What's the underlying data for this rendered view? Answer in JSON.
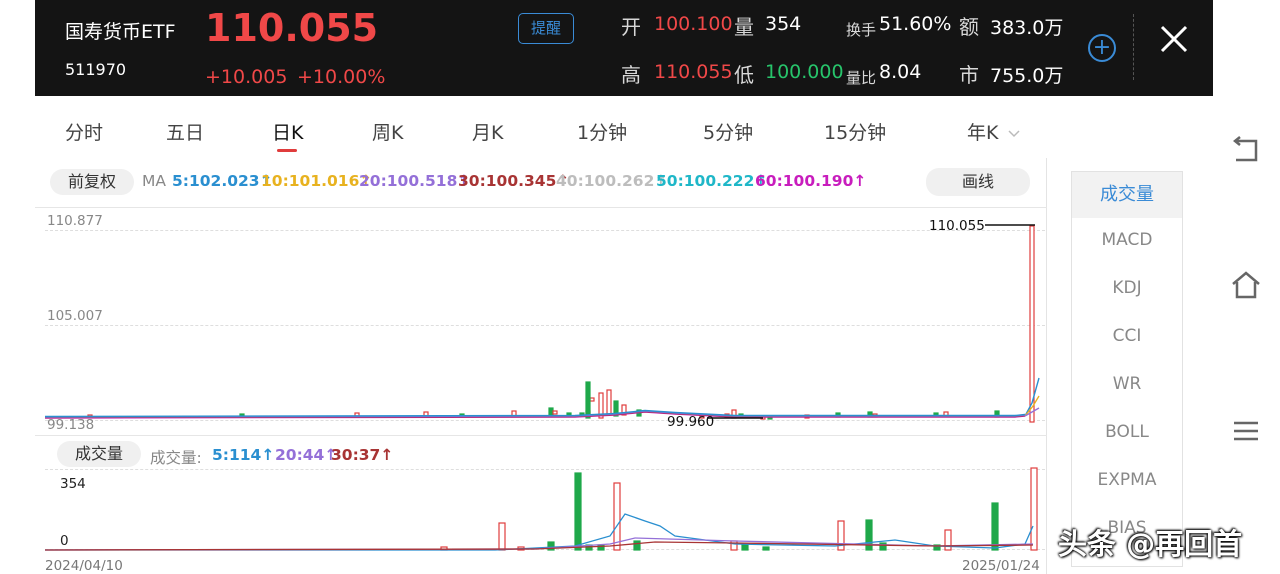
{
  "header": {
    "name": "国寿货币ETF",
    "code": "511970",
    "price": "110.055",
    "change": "+10.005",
    "change_pct": "+10.00%",
    "remind_label": "提醒",
    "stats": {
      "open_label": "开",
      "open": "100.100",
      "vol_label": "量",
      "vol": "354",
      "turnover_label": "换手",
      "turnover": "51.60%",
      "amount_label": "额",
      "amount": "383.0万",
      "high_label": "高",
      "high": "110.055",
      "low_label": "低",
      "low": "100.000",
      "vratio_label": "量比",
      "vratio": "8.04",
      "mcap_label": "市",
      "mcap": "755.0万"
    }
  },
  "tabs": [
    "分时",
    "五日",
    "日K",
    "周K",
    "月K",
    "1分钟",
    "5分钟",
    "15分钟",
    "年K"
  ],
  "active_tab": "日K",
  "tab_dropdown_icon": "chevron-down-icon",
  "chart": {
    "adjust_label": "前复权",
    "draw_label": "画线",
    "ma_prefix": "MA",
    "ma": [
      {
        "text": "5:102.023↑",
        "color": "#2a8fd0"
      },
      {
        "text": "10:101.016↑",
        "color": "#e8b21f"
      },
      {
        "text": "20:100.518↑",
        "color": "#9470d8"
      },
      {
        "text": "30:100.345↑",
        "color": "#a83434"
      },
      {
        "text": "40:100.262↑",
        "color": "#bdbdbd"
      },
      {
        "text": "50:100.222↑",
        "color": "#1fb7c8"
      },
      {
        "text": "60:100.190↑",
        "color": "#c81dbd"
      }
    ],
    "y_max": "110.877",
    "y_mid": "105.007",
    "y_min": "99.138",
    "high_mark": "110.055",
    "low_mark": "99.960",
    "vol_label": "成交量",
    "vol_ma_prefix": "成交量:",
    "vol_ma": [
      {
        "text": "5:114↑",
        "color": "#2a8fd0"
      },
      {
        "text": "20:44↑",
        "color": "#9470d8"
      },
      {
        "text": "30:37↑",
        "color": "#a83434"
      }
    ],
    "vol_max": "354",
    "vol_min": "0",
    "date_start": "2024/04/10",
    "date_end": "2025/01/24"
  },
  "indicators": [
    "成交量",
    "MACD",
    "KDJ",
    "CCI",
    "WR",
    "BOLL",
    "EXPMA",
    "BIAS"
  ],
  "active_indicator": "成交量",
  "watermark": "头条 @再回首",
  "colors": {
    "up": "#e03c3c",
    "down": "#1fa84a",
    "accent": "#3a8bd6",
    "header_bg": "#141414"
  }
}
